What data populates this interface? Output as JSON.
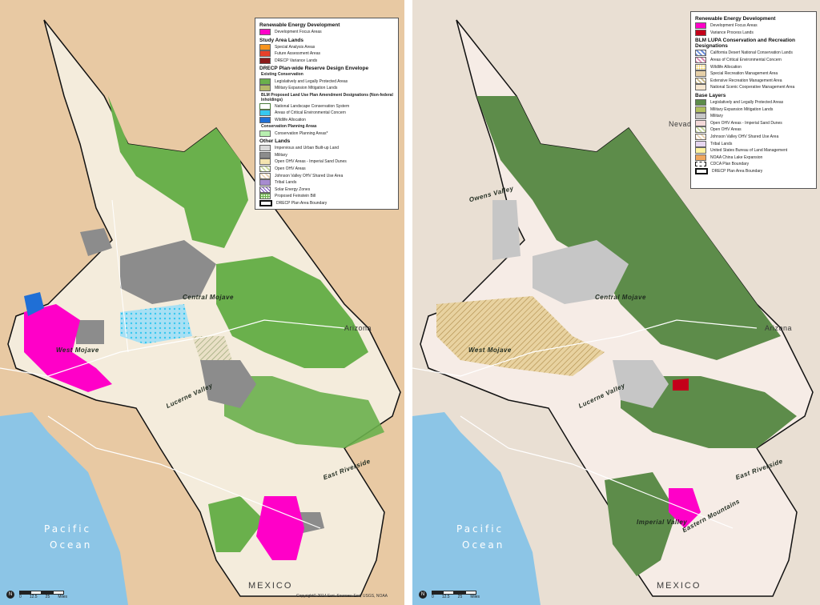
{
  "left_map": {
    "legend": {
      "sections": [
        {
          "title": "Renewable Energy Development",
          "items": [
            {
              "label": "Development Focus Areas",
              "color": "#ff00c8",
              "icon": "solid"
            }
          ]
        },
        {
          "title": "Study Area Lands",
          "items": [
            {
              "label": "Special Analysis Areas",
              "color": "#f7941d",
              "icon": "solid"
            },
            {
              "label": "Future Assessment Areas",
              "color": "#e8402a",
              "icon": "solid"
            },
            {
              "label": "DRECP Variance Lands",
              "color": "#8b1a1a",
              "icon": "solid"
            }
          ]
        },
        {
          "title": "DRECP Plan-wide Reserve Design Envelope",
          "subsections": [
            {
              "title": "Existing Conservation",
              "items": [
                {
                  "label": "Legislatively and Legally Protected Areas",
                  "color": "#6ab04c",
                  "icon": "solid"
                },
                {
                  "label": "Military Expansion Mitigation Lands",
                  "color": "#b5b96b",
                  "icon": "solid"
                }
              ]
            },
            {
              "title": "BLM Proposed Land Use Plan Amendment Designations (Non-federal Inholdings)",
              "items": [
                {
                  "label": "National Landscape Conservation System",
                  "color": "#ffffff",
                  "icon": "outline"
                },
                {
                  "label": "Areas of Critical Environmental Concern",
                  "color": "#36c8f0",
                  "icon": "solid"
                },
                {
                  "label": "Wildlife Allocation",
                  "color": "#1f6fd6",
                  "icon": "solid"
                }
              ]
            },
            {
              "title": "Conservation Planning Areas",
              "items": [
                {
                  "label": "Conservation Planning Areas*",
                  "color": "#b8f0b0",
                  "icon": "solid"
                }
              ]
            }
          ]
        },
        {
          "title": "Other Lands",
          "items": [
            {
              "label": "Impervious and Urban Built-up Land",
              "color": "#d9d9d9",
              "icon": "solid"
            },
            {
              "label": "Military",
              "color": "#8c8c8c",
              "icon": "solid"
            },
            {
              "label": "Open OHV Areas - Imperial Sand Dunes",
              "color": "#f4e4b0",
              "icon": "solid"
            },
            {
              "label": "Open OHV Areas",
              "color": "#c9d9a0",
              "icon": "hatch"
            },
            {
              "label": "Johnson Valley OHV Shared Use Area",
              "color": "#e9d5b6",
              "icon": "hatch"
            },
            {
              "label": "Tribal Lands",
              "color": "#a78bd0",
              "icon": "solid"
            },
            {
              "label": "Solar Energy Zones",
              "color": "#ffffff",
              "icon": "purple-hatch"
            },
            {
              "label": "Proposed Feinstein Bill",
              "color": "#d7ecc8",
              "icon": "grid"
            },
            {
              "label": "DRECP Plan Area Boundary",
              "color": "#ffffff",
              "icon": "boundary"
            }
          ]
        }
      ]
    },
    "regions": {
      "central_mojave": "Central Mojave",
      "west_mojave": "West Mojave",
      "east_riverside": "East Riverside",
      "lucerne_valley": "Lucerne Valley"
    },
    "state": "Arizona",
    "country": "MEXICO",
    "ocean": [
      "Pacific",
      "Ocean"
    ],
    "copyright": "Copyright© 2014 Esri. Sources: Esri, USGS, NOAA",
    "scale": {
      "ticks": [
        "0",
        "12.5",
        "25"
      ],
      "unit": "Miles"
    }
  },
  "right_map": {
    "legend": {
      "sections": [
        {
          "title": "Renewable Energy Development",
          "items": [
            {
              "label": "Development Focus Areas",
              "color": "#ff00c8",
              "icon": "solid"
            },
            {
              "label": "Variance Process Lands",
              "color": "#c4001a",
              "icon": "solid"
            }
          ]
        },
        {
          "title": "BLM LUPA Conservation and Recreation Designations",
          "items": [
            {
              "label": "California Desert National Conservation Lands",
              "color": "#6a8dd9",
              "icon": "hatch"
            },
            {
              "label": "Areas of Critical Environmental Concern",
              "color": "#d98cb0",
              "icon": "hatch"
            },
            {
              "label": "Wildlife Allocation",
              "color": "#f2c94c",
              "icon": "dots"
            },
            {
              "label": "Special Recreation Management Area",
              "color": "#e6d0a8",
              "icon": "solid"
            },
            {
              "label": "Extensive Recreation Management Area",
              "color": "#c9b88a",
              "icon": "hatch"
            },
            {
              "label": "National Scenic Cooperative Management Area",
              "color": "#f5e6d0",
              "icon": "solid"
            }
          ]
        },
        {
          "title": "Base Layers",
          "items": [
            {
              "label": "Legislatively and Legally Protected Areas",
              "color": "#5d8c4a",
              "icon": "solid"
            },
            {
              "label": "Military Expansion Mitigation Lands",
              "color": "#b2c060",
              "icon": "solid"
            },
            {
              "label": "Military",
              "color": "#c6c6c6",
              "icon": "solid"
            },
            {
              "label": "Open OHV Areas - Imperial Sand Dunes",
              "color": "#f4d9d9",
              "icon": "solid"
            },
            {
              "label": "Open OHV Areas",
              "color": "#c9d9a0",
              "icon": "hatch"
            },
            {
              "label": "Johnson Valley OHV Shared Use Area",
              "color": "#e9d5b6",
              "icon": "hatch"
            },
            {
              "label": "Tribal Lands",
              "color": "#e6d6f0",
              "icon": "solid"
            },
            {
              "label": "United States Bureau of Land Management",
              "color": "#fff3a0",
              "icon": "solid"
            },
            {
              "label": "NOAA China Lake Expansion",
              "color": "#f0a860",
              "icon": "solid"
            },
            {
              "label": "CDCA Plan Boundary",
              "color": "#ffffff",
              "icon": "dashed"
            },
            {
              "label": "DRECP Plan Area Boundary",
              "color": "#ffffff",
              "icon": "boundary"
            }
          ]
        }
      ]
    },
    "regions": {
      "owens_valley": "Owens Valley",
      "central_mojave": "Central Mojave",
      "west_mojave": "West Mojave",
      "east_riverside": "East Riverside",
      "imperial_valley": "Imperial Valley",
      "lucerne_valley": "Lucerne Valley",
      "eastern_mountains": "Eastern Mountains"
    },
    "states": {
      "nevada": "Nevada",
      "arizona": "Arizona"
    },
    "country": "MEXICO",
    "ocean": [
      "Pacific",
      "Ocean"
    ],
    "scale": {
      "ticks": [
        "0",
        "12.5",
        "25"
      ],
      "unit": "Miles"
    }
  }
}
